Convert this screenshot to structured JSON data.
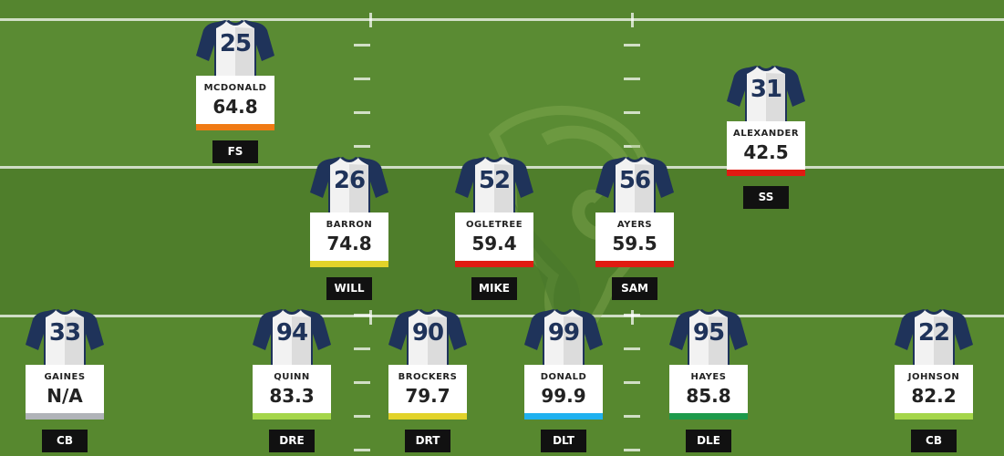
{
  "colors": {
    "jersey_body": "#f2f2f2",
    "jersey_sleeve": "#1f335a",
    "grade_orange": "#f07a14",
    "grade_red": "#e01b12",
    "grade_yellow": "#e2d32a",
    "grade_grey": "#b0b3b8",
    "grade_light_green": "#a5d64a",
    "grade_blue": "#1fb1ef",
    "grade_green": "#1d9a4b",
    "tag_background": "#111111"
  },
  "background": {
    "logo_icon": "rams-logo-watermark-icon"
  },
  "players": [
    {
      "id": "fs",
      "number": "25",
      "name": "MCDONALD",
      "grade": "64.8",
      "grade_color": "#f07a14",
      "position": "FS"
    },
    {
      "id": "ss",
      "number": "31",
      "name": "ALEXANDER",
      "grade": "42.5",
      "grade_color": "#e01b12",
      "position": "SS"
    },
    {
      "id": "will",
      "number": "26",
      "name": "BARRON",
      "grade": "74.8",
      "grade_color": "#e2d32a",
      "position": "WILL"
    },
    {
      "id": "mike",
      "number": "52",
      "name": "OGLETREE",
      "grade": "59.4",
      "grade_color": "#e01b12",
      "position": "MIKE"
    },
    {
      "id": "sam",
      "number": "56",
      "name": "AYERS",
      "grade": "59.5",
      "grade_color": "#e01b12",
      "position": "SAM"
    },
    {
      "id": "cb1",
      "number": "33",
      "name": "GAINES",
      "grade": "N/A",
      "grade_color": "#b0b3b8",
      "position": "CB"
    },
    {
      "id": "dre",
      "number": "94",
      "name": "QUINN",
      "grade": "83.3",
      "grade_color": "#a5d64a",
      "position": "DRE"
    },
    {
      "id": "drt",
      "number": "90",
      "name": "BROCKERS",
      "grade": "79.7",
      "grade_color": "#e2d32a",
      "position": "DRT"
    },
    {
      "id": "dlt",
      "number": "99",
      "name": "DONALD",
      "grade": "99.9",
      "grade_color": "#1fb1ef",
      "position": "DLT"
    },
    {
      "id": "dle",
      "number": "95",
      "name": "HAYES",
      "grade": "85.8",
      "grade_color": "#1d9a4b",
      "position": "DLE"
    },
    {
      "id": "cb2",
      "number": "22",
      "name": "JOHNSON",
      "grade": "82.2",
      "grade_color": "#a5d64a",
      "position": "CB"
    }
  ]
}
